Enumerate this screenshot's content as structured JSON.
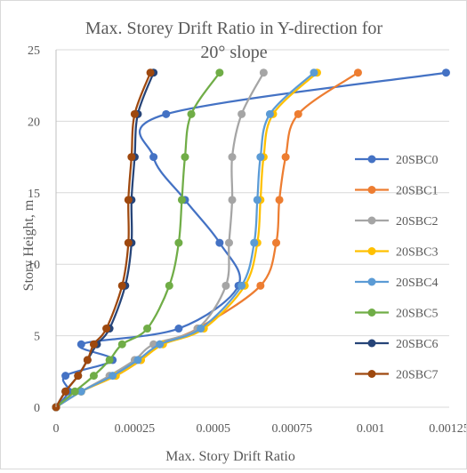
{
  "chart_data": {
    "type": "scatter",
    "title_line1": "Max. Storey Drift Ratio in Y-direction for",
    "title_line2": "20° slope",
    "xlabel": "Max. Story Drift Ratio",
    "ylabel": "Story Height, m",
    "xlim": [
      0,
      0.00125
    ],
    "ylim": [
      0,
      25
    ],
    "xticks": [
      0,
      0.00025,
      0.0005,
      0.00075,
      0.001,
      0.00125
    ],
    "xtick_labels": [
      "0",
      "0.00025",
      "0.0005",
      "0.00075",
      "0.001",
      "0.00125"
    ],
    "yticks": [
      0,
      5,
      10,
      15,
      20,
      25
    ],
    "ytick_labels": [
      "0",
      "5",
      "10",
      "15",
      "20",
      "25"
    ],
    "grid": "horizontal",
    "legend_position": "right",
    "series": [
      {
        "name": "20SBC0",
        "color": "#4472c4",
        "points": [
          [
            0.00124,
            23.4
          ],
          [
            0.00035,
            20.5
          ],
          [
            0.00031,
            17.5
          ],
          [
            0.00041,
            14.5
          ],
          [
            0.00052,
            11.5
          ],
          [
            0.00058,
            8.5
          ],
          [
            0.00039,
            5.5
          ],
          [
            8e-05,
            4.4
          ],
          [
            0.00018,
            3.3
          ],
          [
            3e-05,
            2.2
          ],
          [
            4e-05,
            1.1
          ],
          [
            0.0,
            0.0
          ]
        ]
      },
      {
        "name": "20SBC1",
        "color": "#ed7d31",
        "points": [
          [
            0.00096,
            23.4
          ],
          [
            0.00077,
            20.5
          ],
          [
            0.00073,
            17.5
          ],
          [
            0.00071,
            14.5
          ],
          [
            0.0007,
            11.5
          ],
          [
            0.00065,
            8.5
          ],
          [
            0.00045,
            5.5
          ],
          [
            0.00033,
            4.4
          ],
          [
            0.00027,
            3.3
          ],
          [
            0.00019,
            2.2
          ],
          [
            8e-05,
            1.1
          ],
          [
            0.0,
            0.0
          ]
        ]
      },
      {
        "name": "20SBC2",
        "color": "#a5a5a5",
        "points": [
          [
            0.00066,
            23.4
          ],
          [
            0.00059,
            20.5
          ],
          [
            0.00056,
            17.5
          ],
          [
            0.00056,
            14.5
          ],
          [
            0.00055,
            11.5
          ],
          [
            0.00054,
            8.5
          ],
          [
            0.00045,
            5.5
          ],
          [
            0.00031,
            4.4
          ],
          [
            0.00025,
            3.3
          ],
          [
            0.00017,
            2.2
          ],
          [
            8e-05,
            1.1
          ],
          [
            0.0,
            0.0
          ]
        ]
      },
      {
        "name": "20SBC3",
        "color": "#ffc000",
        "points": [
          [
            0.00083,
            23.4
          ],
          [
            0.00069,
            20.5
          ],
          [
            0.00066,
            17.5
          ],
          [
            0.00065,
            14.5
          ],
          [
            0.00064,
            11.5
          ],
          [
            0.0006,
            8.5
          ],
          [
            0.00047,
            5.5
          ],
          [
            0.00034,
            4.4
          ],
          [
            0.00027,
            3.3
          ],
          [
            0.00019,
            2.2
          ],
          [
            8e-05,
            1.1
          ],
          [
            0.0,
            0.0
          ]
        ]
      },
      {
        "name": "20SBC4",
        "color": "#5b9bd5",
        "points": [
          [
            0.00082,
            23.4
          ],
          [
            0.00068,
            20.5
          ],
          [
            0.00065,
            17.5
          ],
          [
            0.00064,
            14.5
          ],
          [
            0.00063,
            11.5
          ],
          [
            0.00059,
            8.5
          ],
          [
            0.00046,
            5.5
          ],
          [
            0.00033,
            4.4
          ],
          [
            0.00026,
            3.3
          ],
          [
            0.00018,
            2.2
          ],
          [
            8e-05,
            1.1
          ],
          [
            0.0,
            0.0
          ]
        ]
      },
      {
        "name": "20SBC5",
        "color": "#70ad47",
        "points": [
          [
            0.00052,
            23.4
          ],
          [
            0.00043,
            20.5
          ],
          [
            0.00041,
            17.5
          ],
          [
            0.0004,
            14.5
          ],
          [
            0.00039,
            11.5
          ],
          [
            0.00036,
            8.5
          ],
          [
            0.00029,
            5.5
          ],
          [
            0.00021,
            4.4
          ],
          [
            0.00017,
            3.3
          ],
          [
            0.00012,
            2.2
          ],
          [
            6e-05,
            1.1
          ],
          [
            0.0,
            0.0
          ]
        ]
      },
      {
        "name": "20SBC6",
        "color": "#264478",
        "points": [
          [
            0.00031,
            23.4
          ],
          [
            0.00026,
            20.5
          ],
          [
            0.00025,
            17.5
          ],
          [
            0.00024,
            14.5
          ],
          [
            0.00024,
            11.5
          ],
          [
            0.00022,
            8.5
          ],
          [
            0.00017,
            5.5
          ],
          [
            0.00013,
            4.4
          ],
          [
            0.0001,
            3.3
          ],
          [
            7e-05,
            2.2
          ],
          [
            3e-05,
            1.1
          ],
          [
            0.0,
            0.0
          ]
        ]
      },
      {
        "name": "20SBC7",
        "color": "#9e480e",
        "points": [
          [
            0.0003,
            23.4
          ],
          [
            0.00025,
            20.5
          ],
          [
            0.00024,
            17.5
          ],
          [
            0.00023,
            14.5
          ],
          [
            0.00023,
            11.5
          ],
          [
            0.00021,
            8.5
          ],
          [
            0.00016,
            5.5
          ],
          [
            0.00012,
            4.4
          ],
          [
            0.0001,
            3.3
          ],
          [
            7e-05,
            2.2
          ],
          [
            3e-05,
            1.1
          ],
          [
            0.0,
            0.0
          ]
        ]
      }
    ]
  }
}
